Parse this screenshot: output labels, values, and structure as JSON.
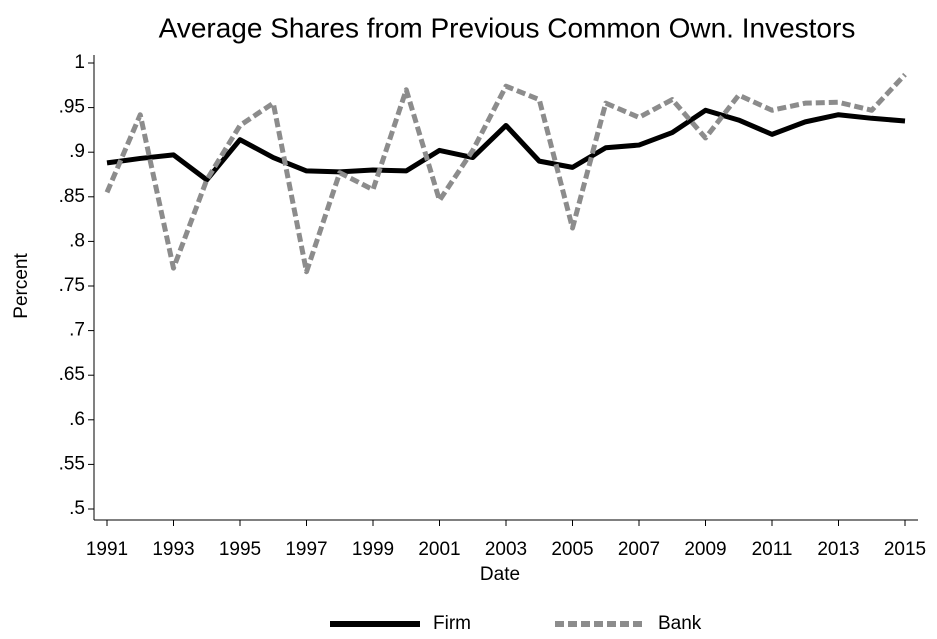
{
  "chart_data": {
    "type": "line",
    "title": "Average Shares from Previous Common Own. Investors",
    "x_label": "Date",
    "y_label": "Percent",
    "x": [
      1991,
      1992,
      1993,
      1994,
      1995,
      1996,
      1997,
      1998,
      1999,
      2000,
      2001,
      2002,
      2003,
      2004,
      2005,
      2006,
      2007,
      2008,
      2009,
      2010,
      2011,
      2012,
      2013,
      2014,
      2015
    ],
    "series": [
      {
        "name": "Firm",
        "color": "#000000",
        "dash": "solid",
        "values": [
          0.888,
          0.893,
          0.897,
          0.869,
          0.914,
          0.894,
          0.879,
          0.878,
          0.88,
          0.879,
          0.902,
          0.894,
          0.93,
          0.89,
          0.883,
          0.905,
          0.908,
          0.922,
          0.947,
          0.936,
          0.92,
          0.934,
          0.942,
          0.938,
          0.935
        ]
      },
      {
        "name": "Bank",
        "color": "#8c8c8c",
        "dash": "dashed",
        "values": [
          0.855,
          0.942,
          0.77,
          0.869,
          0.93,
          0.955,
          0.766,
          0.877,
          0.858,
          0.97,
          0.846,
          0.902,
          0.974,
          0.959,
          0.815,
          0.955,
          0.939,
          0.959,
          0.916,
          0.964,
          0.947,
          0.955,
          0.956,
          0.947,
          0.987
        ]
      }
    ],
    "xlim": [
      1991,
      2015
    ],
    "xticks": [
      1991,
      1993,
      1995,
      1997,
      1999,
      2001,
      2003,
      2005,
      2007,
      2009,
      2011,
      2013,
      2015
    ],
    "ylim": [
      0.5,
      1
    ],
    "yticks": [
      {
        "value": 0.5,
        "label": ".5"
      },
      {
        "value": 0.55,
        "label": ".55"
      },
      {
        "value": 0.6,
        "label": ".6"
      },
      {
        "value": 0.65,
        "label": ".65"
      },
      {
        "value": 0.7,
        "label": ".7"
      },
      {
        "value": 0.75,
        "label": ".75"
      },
      {
        "value": 0.8,
        "label": ".8"
      },
      {
        "value": 0.85,
        "label": ".85"
      },
      {
        "value": 0.9,
        "label": ".9"
      },
      {
        "value": 0.95,
        "label": ".95"
      },
      1
    ],
    "grid": false,
    "legend": "bottom"
  }
}
